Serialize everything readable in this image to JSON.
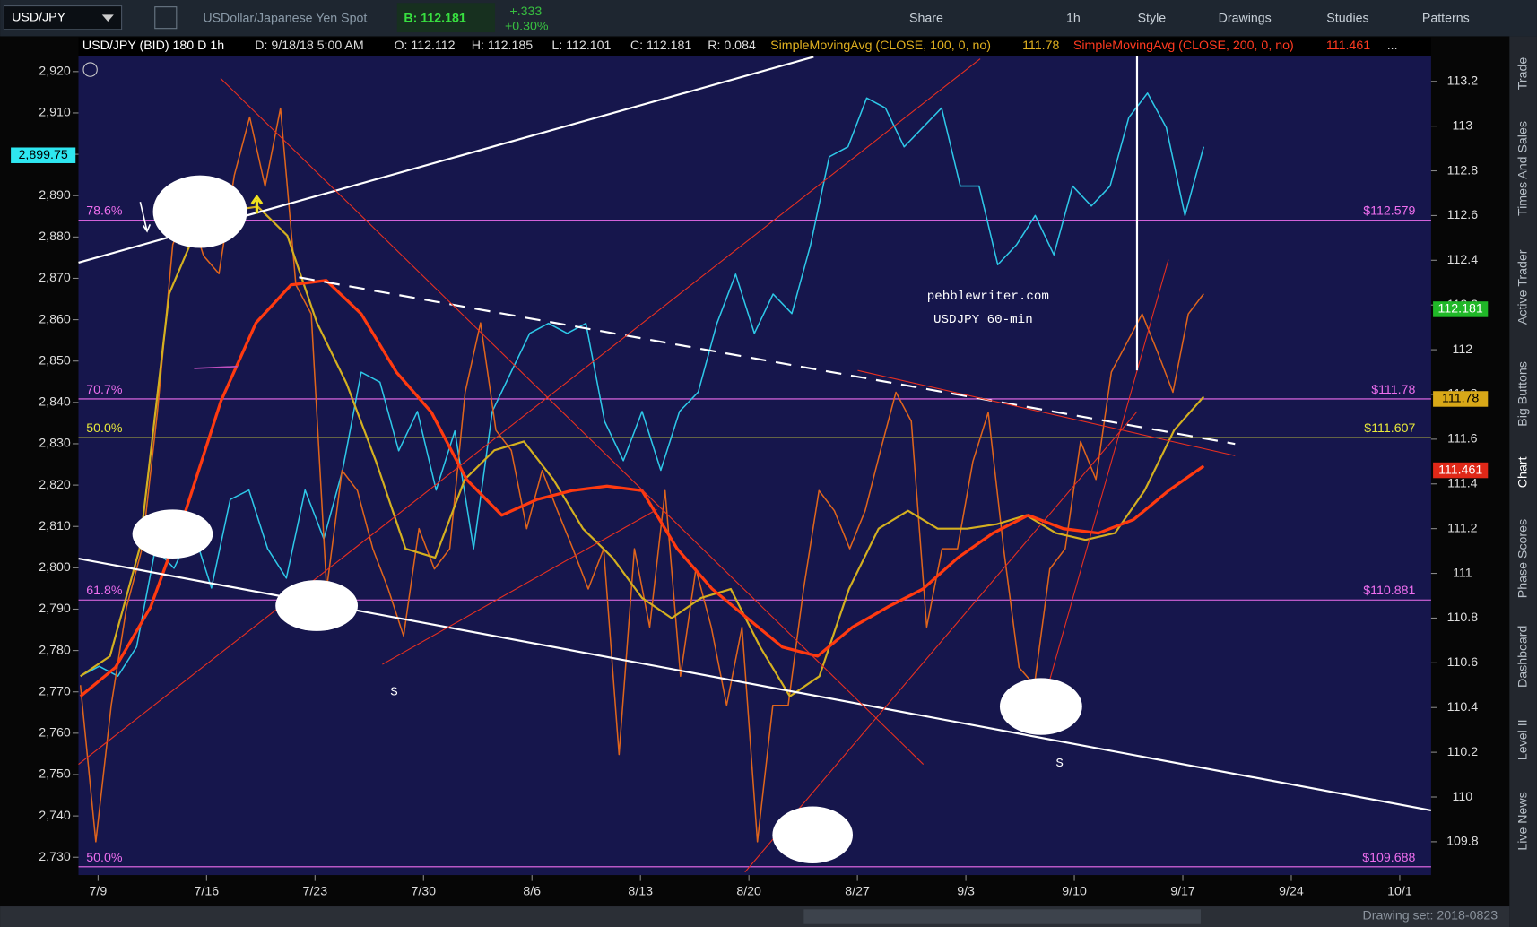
{
  "toolbar": {
    "symbol": "USD/JPY",
    "description": "USDollar/Japanese Yen Spot",
    "bid": "B: 112.181",
    "change": "+.333",
    "change_pct": "+0.30%",
    "buttons": [
      "Share",
      "1h",
      "Style",
      "Drawings",
      "Studies",
      "Patterns"
    ]
  },
  "info_bar": {
    "symbol": "USD/JPY (BID) 180 D 1h",
    "date": "D: 9/18/18 5:00 AM",
    "open": "O: 112.112",
    "high": "H: 112.185",
    "low": "L: 112.101",
    "close": "C: 112.181",
    "range": "R: 0.084",
    "sma100": "SimpleMovingAvg (CLOSE, 100, 0, no)",
    "sma100_value": "111.78",
    "sma200": "SimpleMovingAvg (CLOSE, 200, 0, no)",
    "sma200_value": "111.461",
    "more": "..."
  },
  "chart_data": {
    "type": "line",
    "annotations": [
      "pebblewriter.com",
      "USDJPY 60-min",
      "S",
      "S"
    ],
    "x_labels": [
      "7/9",
      "7/16",
      "7/23",
      "7/30",
      "8/6",
      "8/13",
      "8/20",
      "8/27",
      "9/3",
      "9/10",
      "9/17",
      "9/24",
      "10/1"
    ],
    "ylim": [
      2725.7,
      2923.8
    ],
    "yticks": [
      {
        "value": 2920,
        "label": "2,920"
      },
      {
        "value": 2910,
        "label": "2,910"
      },
      {
        "value": 2900,
        "label": "2,900"
      },
      {
        "value": 2890,
        "label": "2,890"
      },
      {
        "value": 2880,
        "label": "2,880"
      },
      {
        "value": 2870,
        "label": "2,870"
      },
      {
        "value": 2860,
        "label": "2,860"
      },
      {
        "value": 2850,
        "label": "2,850"
      },
      {
        "value": 2840,
        "label": "2,840"
      },
      {
        "value": 2830,
        "label": "2,830"
      },
      {
        "value": 2820,
        "label": "2,820"
      },
      {
        "value": 2810,
        "label": "2,810"
      },
      {
        "value": 2800,
        "label": "2,800"
      },
      {
        "value": 2790,
        "label": "2,790"
      },
      {
        "value": 2780,
        "label": "2,780"
      },
      {
        "value": 2770,
        "label": "2,770"
      },
      {
        "value": 2760,
        "label": "2,760"
      },
      {
        "value": 2750,
        "label": "2,750"
      },
      {
        "value": 2740,
        "label": "2,740"
      },
      {
        "value": 2730,
        "label": "2,730"
      }
    ],
    "y2lim": [
      109.651,
      113.314
    ],
    "y2ticks": [
      113.2,
      113,
      112.8,
      112.6,
      112.4,
      112.2,
      112,
      111.8,
      111.6,
      111.4,
      111.2,
      111,
      110.8,
      110.6,
      110.4,
      110.2,
      110,
      109.8
    ],
    "fib_levels": [
      {
        "value": 112.579,
        "label_left": "78.6%",
        "label_right": "$112.579",
        "color": "#ee6eee"
      },
      {
        "value": 111.78,
        "label_left": "70.7%",
        "label_right": "$111.78",
        "color": "#ee6eee"
      },
      {
        "value": 111.607,
        "label_left": "50.0%",
        "label_right": "$111.607",
        "color": "#e8e83a"
      },
      {
        "value": 110.881,
        "label_left": "61.8%",
        "label_right": "$110.881",
        "color": "#ee6eee"
      },
      {
        "value": 109.688,
        "label_left": "50.0%",
        "label_right": "$109.688",
        "color": "#ee6eee"
      }
    ],
    "left_marker": {
      "value": 2899.75,
      "label": "2,899.75",
      "color": "#2ee6f0"
    },
    "right_markers": [
      {
        "value": 112.181,
        "color": "#20b828"
      },
      {
        "value": 111.78,
        "color": "#d8a818"
      },
      {
        "value": 111.461,
        "color": "#e02818"
      }
    ],
    "series": [
      {
        "color": "#2ec8e8",
        "axis": "y",
        "values": [
          2773.8,
          2776.2,
          2773.8,
          2780.9,
          2804.6,
          2799.9,
          2809.4,
          2795.1,
          2816.5,
          2818.8,
          2804.6,
          2797.5,
          2818.8,
          2807.0,
          2823.6,
          2847.3,
          2844.9,
          2828.3,
          2837.8,
          2818.8,
          2833.1,
          2804.6,
          2837.8,
          2847.3,
          2856.7,
          2859.1,
          2856.7,
          2859.1,
          2835.4,
          2825.9,
          2837.8,
          2823.6,
          2837.8,
          2842.5,
          2859.1,
          2871.0,
          2856.7,
          2866.2,
          2861.5,
          2878.1,
          2899.4,
          2901.8,
          2913.6,
          2911.2,
          2901.8,
          2906.5,
          2911.2,
          2892.3,
          2892.3,
          2873.3,
          2878.1,
          2885.2,
          2875.7,
          2892.3,
          2887.5,
          2892.3,
          2908.9,
          2914.8,
          2906.5,
          2885.2,
          2901.8
        ]
      },
      {
        "color": "#e0651c",
        "axis": "y2",
        "values": [
          110.5,
          109.8,
          110.41,
          110.85,
          111.11,
          111.72,
          112.47,
          112.64,
          112.42,
          112.34,
          112.78,
          113.04,
          112.73,
          113.08,
          112.29,
          112.16,
          110.93,
          111.46,
          111.37,
          111.11,
          110.93,
          110.72,
          111.2,
          111.02,
          111.11,
          111.81,
          112.12,
          111.64,
          111.55,
          111.2,
          111.46,
          111.28,
          111.11,
          110.93,
          111.11,
          110.19,
          111.11,
          110.76,
          111.37,
          110.54,
          111.02,
          110.76,
          110.41,
          110.76,
          109.8,
          110.41,
          110.41,
          110.93,
          111.37,
          111.28,
          111.11,
          111.28,
          111.55,
          111.81,
          111.68,
          110.76,
          111.11,
          111.11,
          111.5,
          111.72,
          111.11,
          110.58,
          110.5,
          111.02,
          111.11,
          111.59,
          111.42,
          111.9,
          112.03,
          112.16,
          111.99,
          111.81,
          112.16,
          112.25
        ]
      },
      {
        "color": "#d4b020",
        "axis": "y2",
        "values": [
          110.54,
          110.63,
          111.11,
          112.25,
          112.56,
          112.62,
          112.64,
          112.51,
          112.12,
          111.85,
          111.5,
          111.11,
          111.07,
          111.42,
          111.55,
          111.59,
          111.42,
          111.2,
          111.07,
          110.89,
          110.8,
          110.89,
          110.93,
          110.67,
          110.45,
          110.54,
          110.93,
          111.2,
          111.28,
          111.2,
          111.2,
          111.22,
          111.26,
          111.18,
          111.15,
          111.18,
          111.37,
          111.64,
          111.79
        ]
      },
      {
        "color": "#ff3a10",
        "axis": "y2",
        "values": [
          110.45,
          110.58,
          110.85,
          111.28,
          111.77,
          112.12,
          112.29,
          112.31,
          112.16,
          111.9,
          111.72,
          111.42,
          111.26,
          111.33,
          111.37,
          111.39,
          111.37,
          111.11,
          110.93,
          110.8,
          110.67,
          110.63,
          110.76,
          110.85,
          110.93,
          111.07,
          111.18,
          111.26,
          111.2,
          111.18,
          111.24,
          111.37,
          111.48
        ]
      }
    ]
  },
  "sidebar": {
    "tabs": [
      "Trade",
      "Times And Sales",
      "Active Trader",
      "Big Buttons",
      "Chart",
      "Phase Scores",
      "Dashboard",
      "Level II",
      "Live News"
    ]
  },
  "footer": {
    "drawing_set": "Drawing set: 2018-0823"
  }
}
